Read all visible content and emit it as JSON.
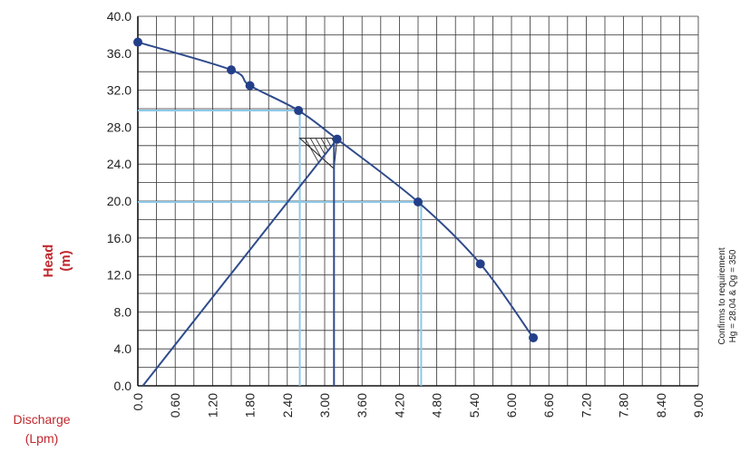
{
  "chart_data": {
    "type": "line",
    "title": "",
    "ylabel": {
      "line1": "Head",
      "line2": "(m)"
    },
    "xlabel": {
      "line1": "Discharge",
      "line2": "(Lpm)"
    },
    "xlim": [
      0,
      9.0
    ],
    "ylim": [
      0,
      40.0
    ],
    "x_ticks": [
      "0.0",
      "0.60",
      "1.20",
      "1.80",
      "2.40",
      "3.00",
      "3.60",
      "4.20",
      "4.80",
      "5.40",
      "6.00",
      "6.60",
      "7.20",
      "7.80",
      "8.40",
      "9.00"
    ],
    "x_tick_values": [
      0,
      0.6,
      1.2,
      1.8,
      2.4,
      3.0,
      3.6,
      4.2,
      4.8,
      5.4,
      6.0,
      6.6,
      7.2,
      7.8,
      8.4,
      9.0
    ],
    "y_ticks": [
      "0.0",
      "4.0",
      "8.0",
      "12.0",
      "16.0",
      "20.0",
      "24.0",
      "28.0",
      "32.0",
      "36.0",
      "40.0"
    ],
    "y_tick_values": [
      0,
      4,
      8,
      12,
      16,
      20,
      24,
      28,
      32,
      36,
      40
    ],
    "grid": true,
    "minor_x_step": 0.3,
    "minor_y_step": 2.0,
    "series": [
      {
        "type": "line",
        "points": [
          [
            0.0,
            37.2
          ],
          [
            1.5,
            34.2
          ],
          [
            1.8,
            32.5
          ],
          [
            2.58,
            29.8
          ],
          [
            3.2,
            26.7
          ],
          [
            4.5,
            19.9
          ],
          [
            5.5,
            13.2
          ],
          [
            6.35,
            5.2
          ]
        ]
      }
    ],
    "markers": [
      [
        0.0,
        37.2
      ],
      [
        1.5,
        34.2
      ],
      [
        1.8,
        32.5
      ],
      [
        2.58,
        29.8
      ],
      [
        3.2,
        26.7
      ],
      [
        4.5,
        19.9
      ],
      [
        5.5,
        13.2
      ],
      [
        6.35,
        5.2
      ]
    ],
    "system_curve": [
      [
        0.08,
        0.0
      ],
      [
        3.2,
        26.7
      ]
    ],
    "operating_vertical": {
      "x": 3.15,
      "y_from": 0,
      "y_to": 26.7
    },
    "reference_lines": [
      {
        "x": 2.6,
        "y": 29.8
      },
      {
        "x": 4.55,
        "y": 19.9
      }
    ],
    "hatch_triangle": [
      [
        2.6,
        26.8
      ],
      [
        3.2,
        26.8
      ],
      [
        3.15,
        23.5
      ]
    ],
    "colors": {
      "curve": "#2f4b8c",
      "marker": "#243f8a",
      "grid": "#333333",
      "reference": "#8cc8e8",
      "label_red": "#c0272d"
    },
    "annotation": {
      "line1": "Confirms to requirement",
      "line2": "Hg = 28.04 & Qg = 350"
    }
  }
}
